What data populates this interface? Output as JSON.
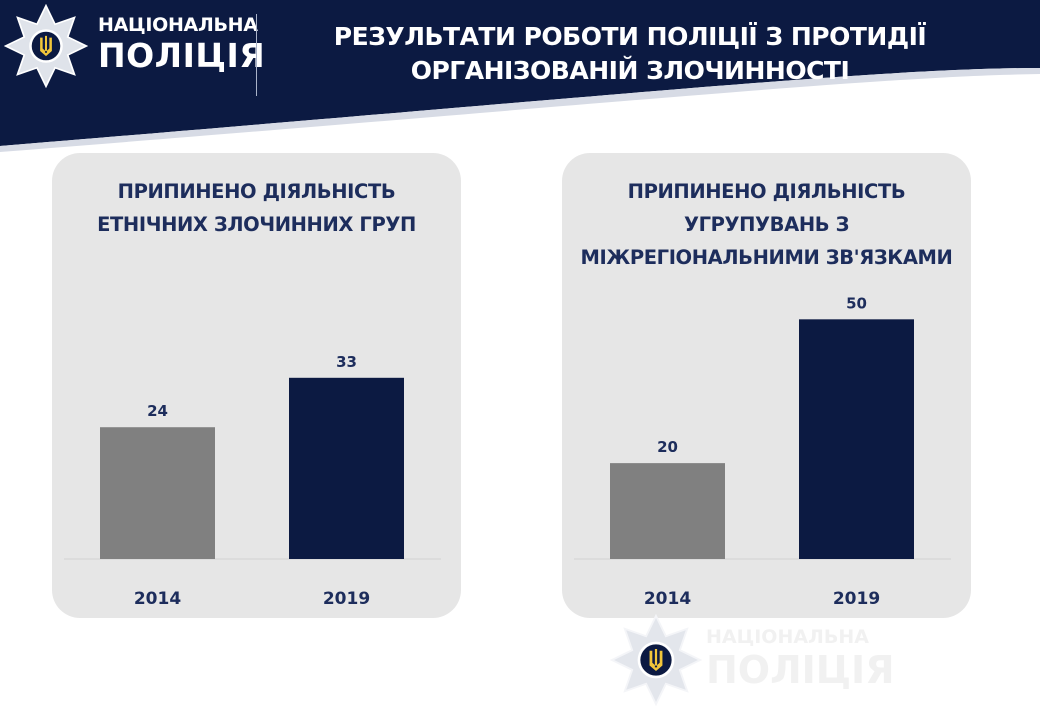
{
  "header": {
    "brand_top": "НАЦІОНАЛЬНА",
    "brand_bottom": "ПОЛІЦІЯ",
    "title_line1": "РЕЗУЛЬТАТИ РОБОТИ ПОЛІЦІЇ З ПРОТИДІЇ",
    "title_line2": "ОРГАНІЗОВАНІЙ ЗЛОЧИННОСТІ"
  },
  "watermark": {
    "top": "НАЦІОНАЛЬНА",
    "bottom": "ПОЛІЦІЯ"
  },
  "colors": {
    "navy": "#0c1a42",
    "bar_2014": "#808080",
    "bar_2019": "#0c1a42",
    "panel": "#e6e6e6",
    "text": "#1d2d5c"
  },
  "chart_data": [
    {
      "type": "bar",
      "title_lines": [
        "ПРИПИНЕНО ДІЯЛЬНІСТЬ",
        "ЕТНІЧНИХ ЗЛОЧИННИХ ГРУП"
      ],
      "categories": [
        "2014",
        "2019"
      ],
      "values": [
        24,
        33
      ],
      "ylim": [
        0,
        55
      ]
    },
    {
      "type": "bar",
      "title_lines": [
        "ПРИПИНЕНО ДІЯЛЬНІСТЬ",
        "УГРУПУВАНЬ З",
        "МІЖРЕГІОНАЛЬНИМИ ЗВ'ЯЗКАМИ"
      ],
      "categories": [
        "2014",
        "2019"
      ],
      "values": [
        20,
        50
      ],
      "ylim": [
        0,
        63
      ]
    }
  ]
}
